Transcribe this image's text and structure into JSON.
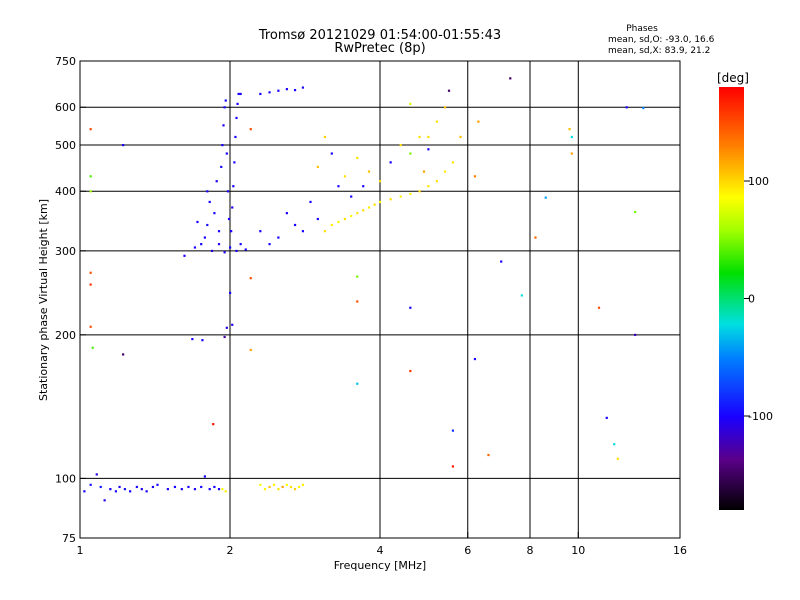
{
  "title_line1": "Tromsø 20121029 01:54:00-01:55:43",
  "title_line2": "RwPretec (8p)",
  "stats": {
    "heading": "Phases",
    "line_o": "mean, sd,O: -93.0, 16.6",
    "line_x": "mean, sd,X: 83.9, 21.2"
  },
  "colorbar": {
    "label": "[deg]",
    "ticks": [
      {
        "value": 100,
        "label": "100"
      },
      {
        "value": 0,
        "label": "0"
      },
      {
        "value": -100,
        "label": "-100"
      }
    ],
    "range": [
      -180,
      180
    ]
  },
  "chart_data": {
    "type": "scatter",
    "title": "Tromsø 20121029 01:54:00-01:55:43",
    "subtitle": "RwPretec (8p)",
    "xlabel": "Frequency [MHz]",
    "ylabel": "Stationary phase Virtual Height [km]",
    "x_scale": "log",
    "y_scale": "log",
    "xlim": [
      1,
      16
    ],
    "ylim": [
      75,
      750
    ],
    "xticks": [
      {
        "value": 1,
        "label": "1"
      },
      {
        "value": 2,
        "label": "2"
      },
      {
        "value": 4,
        "label": "4"
      },
      {
        "value": 6,
        "label": "6"
      },
      {
        "value": 8,
        "label": "8"
      },
      {
        "value": 10,
        "label": "10"
      },
      {
        "value": 16,
        "label": "16"
      }
    ],
    "yticks": [
      {
        "value": 75,
        "label": "75"
      },
      {
        "value": 100,
        "label": "100"
      },
      {
        "value": 200,
        "label": "200"
      },
      {
        "value": 300,
        "label": "300"
      },
      {
        "value": 400,
        "label": "400"
      },
      {
        "value": 500,
        "label": "500"
      },
      {
        "value": 600,
        "label": "600"
      },
      {
        "value": 750,
        "label": "750"
      }
    ],
    "grid": true,
    "gridlines_x": [
      2,
      4,
      6,
      8,
      10
    ],
    "gridlines_y": [
      100,
      200,
      300,
      400,
      500,
      600
    ],
    "color_encodes": "phase [deg]",
    "points": [
      {
        "x": 1.02,
        "y": 94,
        "phase": -100
      },
      {
        "x": 1.05,
        "y": 97,
        "phase": -95
      },
      {
        "x": 1.08,
        "y": 102,
        "phase": -110
      },
      {
        "x": 1.1,
        "y": 96,
        "phase": -90
      },
      {
        "x": 1.12,
        "y": 90,
        "phase": -105
      },
      {
        "x": 1.15,
        "y": 95,
        "phase": -100
      },
      {
        "x": 1.18,
        "y": 94,
        "phase": -98
      },
      {
        "x": 1.2,
        "y": 96,
        "phase": -102
      },
      {
        "x": 1.23,
        "y": 95,
        "phase": -95
      },
      {
        "x": 1.26,
        "y": 94,
        "phase": -100
      },
      {
        "x": 1.3,
        "y": 96,
        "phase": -97
      },
      {
        "x": 1.33,
        "y": 95,
        "phase": -103
      },
      {
        "x": 1.36,
        "y": 94,
        "phase": -99
      },
      {
        "x": 1.4,
        "y": 96,
        "phase": -100
      },
      {
        "x": 1.43,
        "y": 97,
        "phase": -96
      },
      {
        "x": 1.5,
        "y": 95,
        "phase": -100
      },
      {
        "x": 1.55,
        "y": 96,
        "phase": -98
      },
      {
        "x": 1.6,
        "y": 95,
        "phase": -101
      },
      {
        "x": 1.65,
        "y": 96,
        "phase": -99
      },
      {
        "x": 1.7,
        "y": 95,
        "phase": -100
      },
      {
        "x": 1.75,
        "y": 96,
        "phase": -97
      },
      {
        "x": 1.78,
        "y": 101,
        "phase": -100
      },
      {
        "x": 1.82,
        "y": 95,
        "phase": -102
      },
      {
        "x": 1.86,
        "y": 96,
        "phase": -98
      },
      {
        "x": 1.9,
        "y": 95,
        "phase": -100
      },
      {
        "x": 1.93,
        "y": 95,
        "phase": 90
      },
      {
        "x": 1.96,
        "y": 94,
        "phase": 95
      },
      {
        "x": 2.3,
        "y": 97,
        "phase": 88
      },
      {
        "x": 2.35,
        "y": 95,
        "phase": 92
      },
      {
        "x": 2.4,
        "y": 96,
        "phase": 110
      },
      {
        "x": 2.45,
        "y": 97,
        "phase": 95
      },
      {
        "x": 2.5,
        "y": 95,
        "phase": 98
      },
      {
        "x": 2.55,
        "y": 96,
        "phase": 120
      },
      {
        "x": 2.6,
        "y": 97,
        "phase": 90
      },
      {
        "x": 2.65,
        "y": 96,
        "phase": 100
      },
      {
        "x": 2.7,
        "y": 95,
        "phase": 105
      },
      {
        "x": 2.75,
        "y": 96,
        "phase": 93
      },
      {
        "x": 2.8,
        "y": 97,
        "phase": 95
      },
      {
        "x": 1.05,
        "y": 540,
        "phase": 150
      },
      {
        "x": 1.05,
        "y": 430,
        "phase": 40
      },
      {
        "x": 1.05,
        "y": 400,
        "phase": 60
      },
      {
        "x": 1.05,
        "y": 270,
        "phase": 150
      },
      {
        "x": 1.05,
        "y": 255,
        "phase": 160
      },
      {
        "x": 1.05,
        "y": 208,
        "phase": 150
      },
      {
        "x": 1.06,
        "y": 188,
        "phase": 40
      },
      {
        "x": 1.22,
        "y": 500,
        "phase": -100
      },
      {
        "x": 1.22,
        "y": 182,
        "phase": -150
      },
      {
        "x": 1.62,
        "y": 293,
        "phase": -100
      },
      {
        "x": 1.68,
        "y": 196,
        "phase": -100
      },
      {
        "x": 1.76,
        "y": 195,
        "phase": -100
      },
      {
        "x": 1.85,
        "y": 130,
        "phase": 175
      },
      {
        "x": 1.95,
        "y": 198,
        "phase": -130
      },
      {
        "x": 1.97,
        "y": 207,
        "phase": -110
      },
      {
        "x": 2.0,
        "y": 245,
        "phase": -100
      },
      {
        "x": 2.02,
        "y": 210,
        "phase": -105
      },
      {
        "x": 2.2,
        "y": 186,
        "phase": 120
      },
      {
        "x": 2.2,
        "y": 263,
        "phase": 150
      },
      {
        "x": 2.2,
        "y": 540,
        "phase": 150
      },
      {
        "x": 2.1,
        "y": 640,
        "phase": -100
      },
      {
        "x": 1.78,
        "y": 320,
        "phase": -100
      },
      {
        "x": 1.8,
        "y": 340,
        "phase": -95
      },
      {
        "x": 1.82,
        "y": 380,
        "phase": -100
      },
      {
        "x": 1.84,
        "y": 300,
        "phase": -110
      },
      {
        "x": 1.86,
        "y": 360,
        "phase": -98
      },
      {
        "x": 1.88,
        "y": 420,
        "phase": -100
      },
      {
        "x": 1.9,
        "y": 310,
        "phase": -105
      },
      {
        "x": 1.92,
        "y": 450,
        "phase": -95
      },
      {
        "x": 1.93,
        "y": 500,
        "phase": -100
      },
      {
        "x": 1.94,
        "y": 550,
        "phase": -102
      },
      {
        "x": 1.95,
        "y": 600,
        "phase": -97
      },
      {
        "x": 1.96,
        "y": 620,
        "phase": -100
      },
      {
        "x": 1.97,
        "y": 480,
        "phase": -99
      },
      {
        "x": 1.98,
        "y": 400,
        "phase": -101
      },
      {
        "x": 1.99,
        "y": 350,
        "phase": -100
      },
      {
        "x": 2.0,
        "y": 305,
        "phase": -98
      },
      {
        "x": 2.01,
        "y": 330,
        "phase": -100
      },
      {
        "x": 2.02,
        "y": 370,
        "phase": -103
      },
      {
        "x": 2.03,
        "y": 410,
        "phase": -100
      },
      {
        "x": 2.04,
        "y": 460,
        "phase": -96
      },
      {
        "x": 2.05,
        "y": 520,
        "phase": -100
      },
      {
        "x": 2.06,
        "y": 570,
        "phase": -101
      },
      {
        "x": 2.07,
        "y": 610,
        "phase": -99
      },
      {
        "x": 2.08,
        "y": 640,
        "phase": -100
      },
      {
        "x": 2.06,
        "y": 300,
        "phase": -100
      },
      {
        "x": 2.1,
        "y": 310,
        "phase": -98
      },
      {
        "x": 2.15,
        "y": 302,
        "phase": -100
      },
      {
        "x": 1.95,
        "y": 298,
        "phase": -102
      },
      {
        "x": 1.7,
        "y": 305,
        "phase": -100
      },
      {
        "x": 1.75,
        "y": 310,
        "phase": -97
      },
      {
        "x": 1.72,
        "y": 345,
        "phase": -100
      },
      {
        "x": 1.8,
        "y": 400,
        "phase": -100
      },
      {
        "x": 1.9,
        "y": 330,
        "phase": -99
      },
      {
        "x": 2.3,
        "y": 640,
        "phase": -100
      },
      {
        "x": 2.4,
        "y": 645,
        "phase": -98
      },
      {
        "x": 2.5,
        "y": 650,
        "phase": -100
      },
      {
        "x": 2.6,
        "y": 655,
        "phase": -102
      },
      {
        "x": 2.7,
        "y": 652,
        "phase": -100
      },
      {
        "x": 2.8,
        "y": 660,
        "phase": -97
      },
      {
        "x": 2.3,
        "y": 330,
        "phase": -100
      },
      {
        "x": 2.4,
        "y": 310,
        "phase": -98
      },
      {
        "x": 2.5,
        "y": 320,
        "phase": -100
      },
      {
        "x": 2.6,
        "y": 360,
        "phase": -102
      },
      {
        "x": 2.7,
        "y": 340,
        "phase": -100
      },
      {
        "x": 2.8,
        "y": 330,
        "phase": -99
      },
      {
        "x": 2.9,
        "y": 380,
        "phase": -100
      },
      {
        "x": 3.0,
        "y": 350,
        "phase": -98
      },
      {
        "x": 3.1,
        "y": 330,
        "phase": 100
      },
      {
        "x": 3.2,
        "y": 340,
        "phase": 95
      },
      {
        "x": 3.3,
        "y": 345,
        "phase": 90
      },
      {
        "x": 3.4,
        "y": 350,
        "phase": 100
      },
      {
        "x": 3.5,
        "y": 355,
        "phase": 92
      },
      {
        "x": 3.6,
        "y": 360,
        "phase": 98
      },
      {
        "x": 3.7,
        "y": 365,
        "phase": 100
      },
      {
        "x": 3.8,
        "y": 370,
        "phase": 95
      },
      {
        "x": 3.9,
        "y": 375,
        "phase": 100
      },
      {
        "x": 4.0,
        "y": 380,
        "phase": 90
      },
      {
        "x": 4.2,
        "y": 385,
        "phase": 100
      },
      {
        "x": 4.4,
        "y": 390,
        "phase": 95
      },
      {
        "x": 4.6,
        "y": 395,
        "phase": 92
      },
      {
        "x": 4.8,
        "y": 400,
        "phase": 100
      },
      {
        "x": 5.0,
        "y": 410,
        "phase": 98
      },
      {
        "x": 5.2,
        "y": 420,
        "phase": 100
      },
      {
        "x": 5.4,
        "y": 440,
        "phase": 95
      },
      {
        "x": 5.6,
        "y": 460,
        "phase": 100
      },
      {
        "x": 3.0,
        "y": 450,
        "phase": 110
      },
      {
        "x": 3.1,
        "y": 520,
        "phase": 105
      },
      {
        "x": 3.2,
        "y": 480,
        "phase": -100
      },
      {
        "x": 3.3,
        "y": 410,
        "phase": -95
      },
      {
        "x": 3.4,
        "y": 430,
        "phase": 100
      },
      {
        "x": 3.5,
        "y": 390,
        "phase": -100
      },
      {
        "x": 3.6,
        "y": 470,
        "phase": 100
      },
      {
        "x": 3.7,
        "y": 410,
        "phase": -100
      },
      {
        "x": 3.8,
        "y": 440,
        "phase": 110
      },
      {
        "x": 4.0,
        "y": 420,
        "phase": 100
      },
      {
        "x": 4.2,
        "y": 460,
        "phase": -100
      },
      {
        "x": 4.4,
        "y": 500,
        "phase": 100
      },
      {
        "x": 4.6,
        "y": 480,
        "phase": 50
      },
      {
        "x": 4.8,
        "y": 520,
        "phase": 100
      },
      {
        "x": 5.0,
        "y": 490,
        "phase": -100
      },
      {
        "x": 5.2,
        "y": 560,
        "phase": 100
      },
      {
        "x": 5.4,
        "y": 600,
        "phase": 110
      },
      {
        "x": 5.5,
        "y": 650,
        "phase": -150
      },
      {
        "x": 4.6,
        "y": 610,
        "phase": 80
      },
      {
        "x": 5.0,
        "y": 520,
        "phase": 100
      },
      {
        "x": 4.9,
        "y": 440,
        "phase": 120
      },
      {
        "x": 3.6,
        "y": 265,
        "phase": 50
      },
      {
        "x": 3.6,
        "y": 235,
        "phase": 150
      },
      {
        "x": 3.6,
        "y": 158,
        "phase": -30
      },
      {
        "x": 4.6,
        "y": 228,
        "phase": -100
      },
      {
        "x": 4.6,
        "y": 168,
        "phase": 160
      },
      {
        "x": 5.6,
        "y": 126,
        "phase": -80
      },
      {
        "x": 5.6,
        "y": 106,
        "phase": 170
      },
      {
        "x": 6.2,
        "y": 178,
        "phase": -100
      },
      {
        "x": 6.6,
        "y": 112,
        "phase": 140
      },
      {
        "x": 5.8,
        "y": 520,
        "phase": 110
      },
      {
        "x": 6.2,
        "y": 430,
        "phase": 130
      },
      {
        "x": 6.3,
        "y": 560,
        "phase": 120
      },
      {
        "x": 7.0,
        "y": 285,
        "phase": -100
      },
      {
        "x": 7.3,
        "y": 690,
        "phase": -150
      },
      {
        "x": 7.7,
        "y": 242,
        "phase": -20
      },
      {
        "x": 8.2,
        "y": 320,
        "phase": 140
      },
      {
        "x": 8.6,
        "y": 388,
        "phase": -40
      },
      {
        "x": 9.6,
        "y": 540,
        "phase": 110
      },
      {
        "x": 9.7,
        "y": 520,
        "phase": -20
      },
      {
        "x": 9.7,
        "y": 480,
        "phase": 120
      },
      {
        "x": 11.0,
        "y": 228,
        "phase": 150
      },
      {
        "x": 11.4,
        "y": 134,
        "phase": -100
      },
      {
        "x": 11.8,
        "y": 118,
        "phase": -20
      },
      {
        "x": 12.0,
        "y": 110,
        "phase": 100
      },
      {
        "x": 12.5,
        "y": 600,
        "phase": -100
      },
      {
        "x": 13.0,
        "y": 200,
        "phase": -120
      },
      {
        "x": 13.0,
        "y": 362,
        "phase": 50
      },
      {
        "x": 13.5,
        "y": 598,
        "phase": -50
      }
    ]
  }
}
